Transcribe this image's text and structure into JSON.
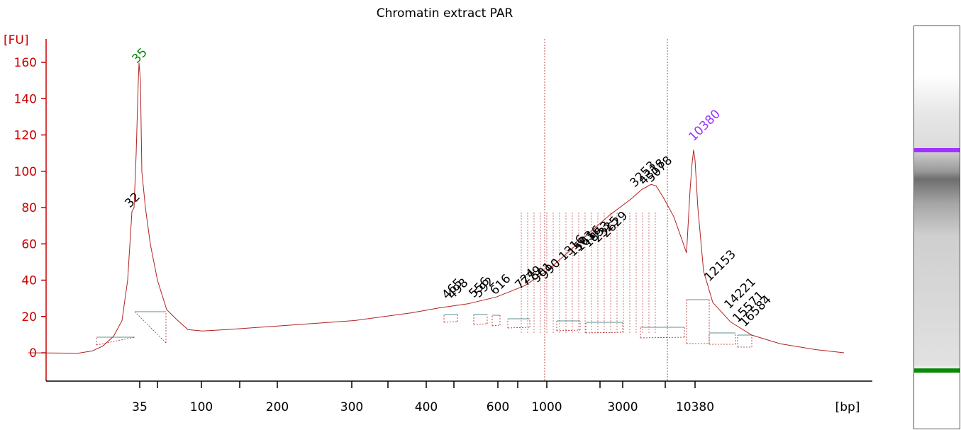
{
  "chart_data": {
    "type": "line",
    "title": "Chromatin extract PAR",
    "ylabel": "[FU]",
    "xlabel": "[bp]",
    "ylim": [
      -15,
      170
    ],
    "yticks": [
      0,
      20,
      40,
      60,
      80,
      100,
      120,
      140,
      160
    ],
    "xticks": [
      "35",
      "100",
      "200",
      "300",
      "400",
      "600",
      "1000",
      "3000",
      "10380"
    ],
    "trace_points": [
      [
        40,
        0
      ],
      [
        110,
        0
      ],
      [
        130,
        1
      ],
      [
        145,
        4
      ],
      [
        160,
        9
      ],
      [
        172,
        18
      ],
      [
        180,
        40
      ],
      [
        186,
        78
      ],
      [
        189,
        80
      ],
      [
        192,
        110
      ],
      [
        195,
        150
      ],
      [
        196,
        160
      ],
      [
        198,
        150
      ],
      [
        200,
        100
      ],
      [
        205,
        80
      ],
      [
        212,
        60
      ],
      [
        222,
        40
      ],
      [
        235,
        24
      ],
      [
        250,
        18
      ],
      [
        265,
        13
      ],
      [
        285,
        12
      ],
      [
        320,
        13
      ],
      [
        400,
        15
      ],
      [
        500,
        18
      ],
      [
        580,
        22
      ],
      [
        620,
        25
      ],
      [
        660,
        27
      ],
      [
        700,
        31
      ],
      [
        740,
        37
      ],
      [
        770,
        45
      ],
      [
        800,
        55
      ],
      [
        830,
        66
      ],
      [
        860,
        76
      ],
      [
        890,
        85
      ],
      [
        905,
        90
      ],
      [
        918,
        93
      ],
      [
        925,
        92
      ],
      [
        935,
        86
      ],
      [
        950,
        75
      ],
      [
        962,
        62
      ],
      [
        968,
        55
      ],
      [
        973,
        90
      ],
      [
        976,
        105
      ],
      [
        978,
        112
      ],
      [
        980,
        106
      ],
      [
        984,
        80
      ],
      [
        992,
        45
      ],
      [
        1005,
        28
      ],
      [
        1030,
        17
      ],
      [
        1060,
        10
      ],
      [
        1100,
        5
      ],
      [
        1150,
        2
      ],
      [
        1190,
        0
      ]
    ],
    "peaks": [
      {
        "label": "32",
        "size": 32
      },
      {
        "label": "35",
        "size": 35,
        "marker": "lower"
      },
      {
        "label": "465",
        "size": 465
      },
      {
        "label": "498",
        "size": 498
      },
      {
        "label": "556",
        "size": 556
      },
      {
        "label": "592",
        "size": 592
      },
      {
        "label": "616",
        "size": 616
      },
      {
        "label": "724",
        "size": 724
      },
      {
        "label": "779",
        "size": 779
      },
      {
        "label": "901",
        "size": 901
      },
      {
        "label": "990",
        "size": 990
      },
      {
        "label": "1316",
        "size": 1316
      },
      {
        "label": "1503",
        "size": 1503
      },
      {
        "label": "1616",
        "size": 1616
      },
      {
        "label": "1853",
        "size": 1853
      },
      {
        "label": "2325",
        "size": 2325
      },
      {
        "label": "2629",
        "size": 2629
      },
      {
        "label": "3253",
        "size": 3253
      },
      {
        "label": "4318",
        "size": 4318
      },
      {
        "label": "5078",
        "size": 5078
      },
      {
        "label": "10380",
        "size": 10380,
        "marker": "upper"
      },
      {
        "label": "12153",
        "size": 12153
      },
      {
        "label": "14221",
        "size": 14221
      },
      {
        "label": "15571",
        "size": 15571
      },
      {
        "label": "16584",
        "size": 16584
      }
    ],
    "marker_peaks": {
      "lower": "35",
      "upper": "10380"
    },
    "grid": false,
    "colors": {
      "axis": "#cc0000",
      "trace": "#b22222",
      "lower_marker": "#008000",
      "upper_marker": "#9933ff",
      "baseline": "#5f8f8f"
    }
  }
}
